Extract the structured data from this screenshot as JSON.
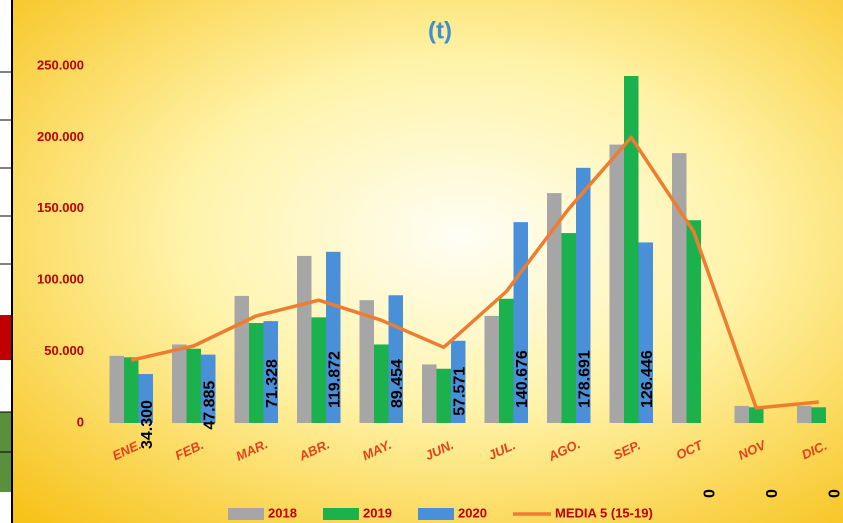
{
  "chart_data": {
    "type": "bar",
    "subtitle": "(t)",
    "categories": [
      "ENE.",
      "FEB.",
      "MAR.",
      "ABR.",
      "MAY.",
      "JUN.",
      "JUL.",
      "AGO.",
      "SEP.",
      "OCT",
      "NOV",
      "DIC."
    ],
    "series": [
      {
        "name": "2018",
        "color": "#a6a6a6",
        "values": [
          47000,
          55000,
          89000,
          117000,
          86000,
          41000,
          75000,
          161000,
          195000,
          189000,
          12000,
          12000
        ]
      },
      {
        "name": "2019",
        "color": "#1bb14c",
        "values": [
          46000,
          52000,
          70000,
          74000,
          55000,
          38000,
          87000,
          133000,
          243000,
          142000,
          11000,
          11000
        ]
      },
      {
        "name": "2020",
        "color": "#4a90d9",
        "values": [
          34300,
          47885,
          71328,
          119872,
          89454,
          57571,
          140676,
          178691,
          126446,
          0,
          0,
          0
        ],
        "value_labels": [
          "34.300",
          "47.885",
          "71.328",
          "119.872",
          "89.454",
          "57.571",
          "140.676",
          "178.691",
          "126.446",
          "0",
          "0",
          "0"
        ]
      },
      {
        "name": "MEDIA 5 (15-19)",
        "color": "#ed7d31",
        "type": "line",
        "values": [
          44000,
          54000,
          75000,
          86000,
          72000,
          53000,
          92000,
          150000,
          200000,
          134000,
          10500,
          14700
        ]
      }
    ],
    "ylim": [
      0,
      250000
    ],
    "yticks": [
      0,
      {
        "value": 50000,
        "label": "50.000"
      },
      {
        "value": 100000,
        "label": "100.000"
      },
      {
        "value": 150000,
        "label": "150.000"
      },
      {
        "value": 200000,
        "label": "200.000"
      },
      {
        "value": 250000,
        "label": "250.000"
      }
    ]
  }
}
